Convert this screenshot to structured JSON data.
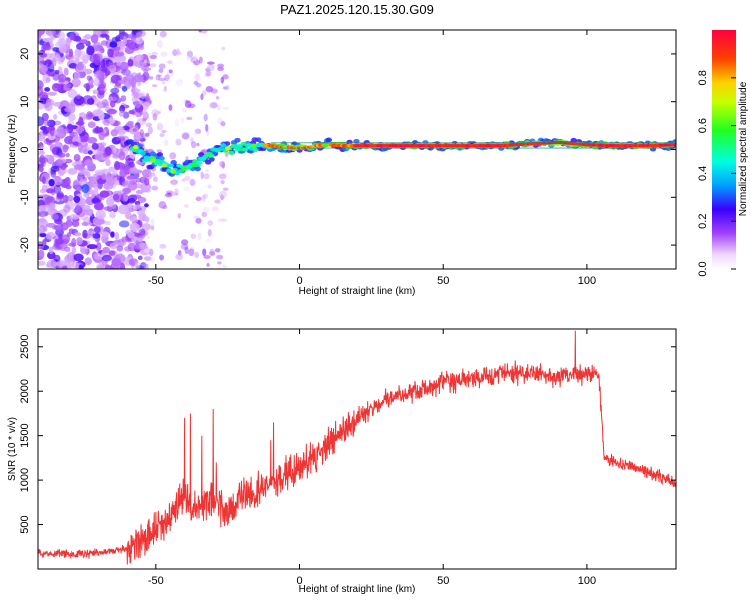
{
  "title": "PAZ1.2025.120.15.30.G09",
  "colors": {
    "snr_line": "#ef3434",
    "background": "#ffffff",
    "axis": "#000000"
  },
  "chart_data": [
    {
      "type": "heatmap",
      "xlabel": "Height of straight line (km)",
      "ylabel": "Frequency (Hz)",
      "xlim": [
        -91,
        131
      ],
      "ylim": [
        -25,
        25
      ],
      "xticks": [
        -50,
        0,
        50,
        100
      ],
      "yticks": [
        -20,
        -10,
        0,
        10,
        20
      ],
      "xtick_labels": [
        "-50",
        "0",
        "50",
        "100"
      ],
      "ytick_labels": [
        "-20",
        "-10",
        "0",
        "10",
        "20"
      ],
      "colorbar": {
        "label": "Normalized spectral amplitude",
        "range": [
          0,
          1
        ],
        "ticks": [
          0.0,
          0.2,
          0.4,
          0.6,
          0.8
        ],
        "tick_labels": [
          "0.0",
          "0.2",
          "0.4",
          "0.6",
          "0.8"
        ],
        "colormap": "rainbow (white-violet-blue-cyan-green-yellow-red)"
      },
      "grid": false,
      "description": "Dominant frequency ridge: noisy scatter below -55 km, dip to about -4 Hz near -45 km, then a narrow red band near 0 to 1 Hz from about -10 km to 131 km.",
      "ridge": {
        "x": [
          -58,
          -54,
          -50,
          -46,
          -43,
          -40,
          -37,
          -34,
          -30,
          -26,
          -22,
          -18,
          -14,
          -10,
          -6,
          -2,
          2,
          6,
          10,
          14,
          20,
          30,
          50,
          70,
          80,
          90,
          100,
          110,
          120,
          131
        ],
        "y": [
          0.5,
          -1.5,
          -2.5,
          -3.5,
          -4.5,
          -4.0,
          -3.5,
          -2.0,
          -0.5,
          0.5,
          0.0,
          0.5,
          1.0,
          0.8,
          0.5,
          0.3,
          0.3,
          0.8,
          1.0,
          0.8,
          0.8,
          0.8,
          0.8,
          0.8,
          1.2,
          1.5,
          1.0,
          0.8,
          0.8,
          1.0
        ]
      }
    },
    {
      "type": "line",
      "xlabel": "Height of straight line (km)",
      "ylabel": "SNR (10 * v/v)",
      "xlim": [
        -91,
        131
      ],
      "ylim": [
        0,
        2700
      ],
      "xticks": [
        -50,
        0,
        50,
        100
      ],
      "yticks": [
        500,
        1000,
        1500,
        2000,
        2500
      ],
      "xtick_labels": [
        "-50",
        "0",
        "50",
        "100"
      ],
      "ytick_labels": [
        "500",
        "1000",
        "1500",
        "2000",
        "2500"
      ],
      "grid": false,
      "series": [
        {
          "x": [
            -91,
            -80,
            -70,
            -60,
            -55,
            -50,
            -45,
            -42,
            -40,
            -38,
            -35,
            -30,
            -25,
            -20,
            -15,
            -10,
            -5,
            0,
            5,
            10,
            15,
            20,
            25,
            30,
            35,
            40,
            45,
            50,
            55,
            60,
            65,
            70,
            75,
            80,
            85,
            90,
            95,
            100,
            104,
            105,
            106,
            110,
            115,
            120,
            125,
            131
          ],
          "y": [
            180,
            170,
            180,
            230,
            350,
            450,
            550,
            700,
            850,
            650,
            700,
            800,
            650,
            800,
            850,
            950,
            1050,
            1150,
            1250,
            1400,
            1550,
            1700,
            1800,
            1900,
            1950,
            2000,
            2050,
            2100,
            2100,
            2150,
            2150,
            2200,
            2200,
            2200,
            2200,
            2150,
            2200,
            2200,
            2200,
            1800,
            1250,
            1200,
            1150,
            1100,
            1050,
            950
          ]
        }
      ]
    }
  ]
}
